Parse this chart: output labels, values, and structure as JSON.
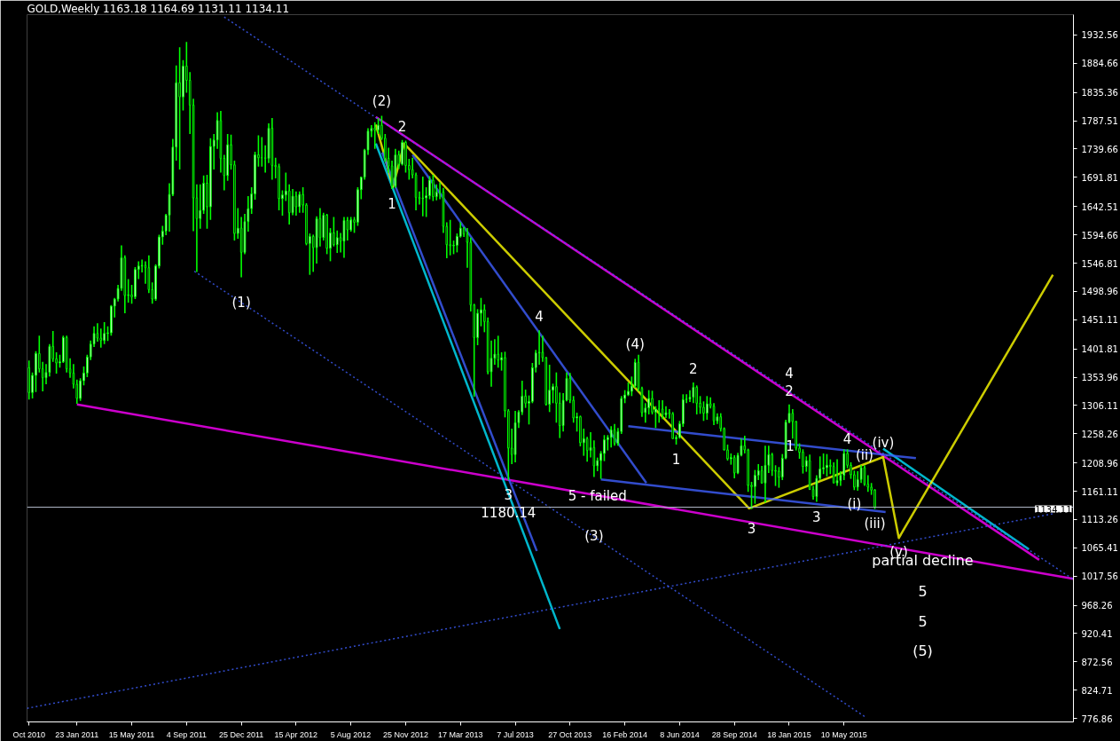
{
  "chart_data": {
    "type": "candlestick",
    "title": "GOLD,Weekly  1163.18 1164.69 1131.11 1134.11",
    "color": "#00ff00",
    "x": [
      "2010-10-17",
      "2010-10-24",
      "2010-10-31",
      "2010-11-07",
      "2010-11-14",
      "2010-11-21",
      "2010-11-28",
      "2010-12-05",
      "2010-12-12",
      "2010-12-19",
      "2010-12-26",
      "2011-01-02",
      "2011-01-09",
      "2011-01-16",
      "2011-01-23",
      "2011-01-30",
      "2011-02-06",
      "2011-02-13",
      "2011-02-20",
      "2011-02-27",
      "2011-03-06",
      "2011-03-13",
      "2011-03-20",
      "2011-03-27",
      "2011-04-03",
      "2011-04-10",
      "2011-04-17",
      "2011-04-24",
      "2011-05-01",
      "2011-05-08",
      "2011-05-15",
      "2011-05-22",
      "2011-05-29",
      "2011-06-05",
      "2011-06-12",
      "2011-06-19",
      "2011-06-26",
      "2011-07-03",
      "2011-07-10",
      "2011-07-17",
      "2011-07-24",
      "2011-07-31",
      "2011-08-07",
      "2011-08-14",
      "2011-08-21",
      "2011-08-28",
      "2011-09-04",
      "2011-09-11",
      "2011-09-18",
      "2011-09-25",
      "2011-10-02",
      "2011-10-09",
      "2011-10-16",
      "2011-10-23",
      "2011-10-30",
      "2011-11-06",
      "2011-11-13",
      "2011-11-20",
      "2011-11-27",
      "2011-12-04",
      "2011-12-11",
      "2011-12-18",
      "2011-12-25",
      "2012-01-01",
      "2012-01-08",
      "2012-01-15",
      "2012-01-22",
      "2012-01-29",
      "2012-02-05",
      "2012-02-12",
      "2012-02-19",
      "2012-02-26",
      "2012-03-04",
      "2012-03-11",
      "2012-03-18",
      "2012-03-25",
      "2012-04-01",
      "2012-04-08",
      "2012-04-15",
      "2012-04-22",
      "2012-04-29",
      "2012-05-06",
      "2012-05-13",
      "2012-05-20",
      "2012-05-27",
      "2012-06-03",
      "2012-06-10",
      "2012-06-17",
      "2012-06-24",
      "2012-07-01",
      "2012-07-08",
      "2012-07-15",
      "2012-07-22",
      "2012-07-29",
      "2012-08-05",
      "2012-08-12",
      "2012-08-19",
      "2012-08-26",
      "2012-09-02",
      "2012-09-09",
      "2012-09-16",
      "2012-09-23",
      "2012-09-30",
      "2012-10-07",
      "2012-10-14",
      "2012-10-21",
      "2012-10-28",
      "2012-11-04",
      "2012-11-11",
      "2012-11-18",
      "2012-11-25",
      "2012-12-02",
      "2012-12-09",
      "2012-12-16",
      "2012-12-23",
      "2012-12-30",
      "2013-01-06",
      "2013-01-13",
      "2013-01-20",
      "2013-01-27",
      "2013-02-03",
      "2013-02-10",
      "2013-02-17",
      "2013-02-24",
      "2013-03-03",
      "2013-03-10",
      "2013-03-17",
      "2013-03-24",
      "2013-03-31",
      "2013-04-07",
      "2013-04-14",
      "2013-04-21",
      "2013-04-28",
      "2013-05-05",
      "2013-05-12",
      "2013-05-19",
      "2013-05-26",
      "2013-06-02",
      "2013-06-09",
      "2013-06-16",
      "2013-06-23",
      "2013-06-30",
      "2013-07-07",
      "2013-07-14",
      "2013-07-21",
      "2013-07-28",
      "2013-08-04",
      "2013-08-11",
      "2013-08-18",
      "2013-08-25",
      "2013-09-01",
      "2013-09-08",
      "2013-09-15",
      "2013-09-22",
      "2013-09-29",
      "2013-10-06",
      "2013-10-13",
      "2013-10-20",
      "2013-10-27",
      "2013-11-03",
      "2013-11-10",
      "2013-11-17",
      "2013-11-24",
      "2013-12-01",
      "2013-12-08",
      "2013-12-15",
      "2013-12-22",
      "2013-12-29",
      "2014-01-05",
      "2014-01-12",
      "2014-01-19",
      "2014-01-26",
      "2014-02-02",
      "2014-02-09",
      "2014-02-16",
      "2014-02-23",
      "2014-03-02",
      "2014-03-09",
      "2014-03-16",
      "2014-03-23",
      "2014-03-30",
      "2014-04-06",
      "2014-04-13",
      "2014-04-20",
      "2014-04-27",
      "2014-05-04",
      "2014-05-11",
      "2014-05-18",
      "2014-05-25",
      "2014-06-01",
      "2014-06-08",
      "2014-06-15",
      "2014-06-22",
      "2014-06-29",
      "2014-07-06",
      "2014-07-13",
      "2014-07-20",
      "2014-07-27",
      "2014-08-03",
      "2014-08-10",
      "2014-08-17",
      "2014-08-24",
      "2014-08-31",
      "2014-09-07",
      "2014-09-14",
      "2014-09-21",
      "2014-09-28",
      "2014-10-05",
      "2014-10-12",
      "2014-10-19",
      "2014-10-26",
      "2014-11-02",
      "2014-11-09",
      "2014-11-16",
      "2014-11-23",
      "2014-11-30",
      "2014-12-07",
      "2014-12-14",
      "2014-12-21",
      "2014-12-28",
      "2015-01-04",
      "2015-01-11",
      "2015-01-18",
      "2015-01-25",
      "2015-02-01",
      "2015-02-08",
      "2015-02-15",
      "2015-02-22",
      "2015-03-01",
      "2015-03-08",
      "2015-03-15",
      "2015-03-22",
      "2015-03-29",
      "2015-04-05",
      "2015-04-12",
      "2015-04-19",
      "2015-04-26",
      "2015-05-03",
      "2015-05-10",
      "2015-05-17",
      "2015-05-24",
      "2015-05-31",
      "2015-06-07",
      "2015-06-14",
      "2015-06-21",
      "2015-06-28",
      "2015-07-05",
      "2015-07-12"
    ],
    "ohlc": [
      [
        1370,
        1382,
        1316,
        1328
      ],
      [
        1328,
        1362,
        1318,
        1357
      ],
      [
        1357,
        1398,
        1329,
        1394
      ],
      [
        1394,
        1424,
        1362,
        1368
      ],
      [
        1368,
        1380,
        1330,
        1353
      ],
      [
        1353,
        1376,
        1342,
        1362
      ],
      [
        1362,
        1410,
        1355,
        1406
      ],
      [
        1406,
        1432,
        1380,
        1385
      ],
      [
        1385,
        1396,
        1360,
        1378
      ],
      [
        1378,
        1392,
        1370,
        1380
      ],
      [
        1380,
        1424,
        1378,
        1421
      ],
      [
        1421,
        1424,
        1362,
        1368
      ],
      [
        1368,
        1386,
        1353,
        1361
      ],
      [
        1361,
        1376,
        1335,
        1342
      ],
      [
        1342,
        1350,
        1309,
        1318
      ],
      [
        1318,
        1352,
        1314,
        1348
      ],
      [
        1348,
        1372,
        1340,
        1361
      ],
      [
        1361,
        1392,
        1354,
        1388
      ],
      [
        1388,
        1416,
        1383,
        1410
      ],
      [
        1410,
        1440,
        1405,
        1428
      ],
      [
        1428,
        1445,
        1414,
        1420
      ],
      [
        1420,
        1436,
        1404,
        1416
      ],
      [
        1416,
        1447,
        1410,
        1428
      ],
      [
        1428,
        1440,
        1415,
        1429
      ],
      [
        1429,
        1476,
        1424,
        1474
      ],
      [
        1474,
        1488,
        1455,
        1486
      ],
      [
        1486,
        1510,
        1482,
        1504
      ],
      [
        1504,
        1577,
        1500,
        1556
      ],
      [
        1556,
        1560,
        1462,
        1492
      ],
      [
        1492,
        1520,
        1480,
        1493
      ],
      [
        1493,
        1510,
        1478,
        1490
      ],
      [
        1490,
        1540,
        1486,
        1536
      ],
      [
        1536,
        1550,
        1520,
        1542
      ],
      [
        1542,
        1553,
        1531,
        1543
      ],
      [
        1543,
        1550,
        1512,
        1539
      ],
      [
        1539,
        1560,
        1496,
        1502
      ],
      [
        1502,
        1514,
        1478,
        1486
      ],
      [
        1486,
        1545,
        1483,
        1542
      ],
      [
        1542,
        1595,
        1538,
        1591
      ],
      [
        1591,
        1610,
        1578,
        1601
      ],
      [
        1601,
        1630,
        1594,
        1628
      ],
      [
        1628,
        1682,
        1600,
        1663
      ],
      [
        1663,
        1757,
        1660,
        1743
      ],
      [
        1743,
        1881,
        1720,
        1852
      ],
      [
        1852,
        1912,
        1705,
        1828
      ],
      [
        1828,
        1890,
        1805,
        1880
      ],
      [
        1880,
        1921,
        1835,
        1856
      ],
      [
        1856,
        1870,
        1765,
        1814
      ],
      [
        1814,
        1825,
        1601,
        1657
      ],
      [
        1657,
        1680,
        1532,
        1622
      ],
      [
        1622,
        1680,
        1605,
        1636
      ],
      [
        1636,
        1695,
        1630,
        1682
      ],
      [
        1682,
        1696,
        1605,
        1642
      ],
      [
        1642,
        1758,
        1620,
        1744
      ],
      [
        1744,
        1765,
        1705,
        1755
      ],
      [
        1755,
        1802,
        1740,
        1788
      ],
      [
        1788,
        1804,
        1700,
        1724
      ],
      [
        1724,
        1730,
        1670,
        1695
      ],
      [
        1695,
        1765,
        1686,
        1747
      ],
      [
        1747,
        1764,
        1705,
        1713
      ],
      [
        1713,
        1720,
        1585,
        1597
      ],
      [
        1597,
        1640,
        1588,
        1606
      ],
      [
        1606,
        1625,
        1523,
        1565
      ],
      [
        1565,
        1630,
        1562,
        1617
      ],
      [
        1617,
        1660,
        1600,
        1639
      ],
      [
        1639,
        1675,
        1630,
        1664
      ],
      [
        1664,
        1735,
        1654,
        1730
      ],
      [
        1730,
        1763,
        1710,
        1725
      ],
      [
        1725,
        1760,
        1710,
        1725
      ],
      [
        1725,
        1746,
        1700,
        1724
      ],
      [
        1724,
        1783,
        1716,
        1775
      ],
      [
        1775,
        1792,
        1688,
        1712
      ],
      [
        1712,
        1725,
        1690,
        1710
      ],
      [
        1710,
        1715,
        1636,
        1656
      ],
      [
        1656,
        1670,
        1627,
        1662
      ],
      [
        1662,
        1700,
        1652,
        1669
      ],
      [
        1669,
        1680,
        1612,
        1632
      ],
      [
        1632,
        1672,
        1628,
        1660
      ],
      [
        1660,
        1668,
        1627,
        1642
      ],
      [
        1642,
        1668,
        1632,
        1663
      ],
      [
        1663,
        1675,
        1632,
        1645
      ],
      [
        1645,
        1648,
        1577,
        1580
      ],
      [
        1580,
        1597,
        1527,
        1592
      ],
      [
        1592,
        1595,
        1532,
        1573
      ],
      [
        1573,
        1626,
        1546,
        1622
      ],
      [
        1622,
        1640,
        1575,
        1590
      ],
      [
        1590,
        1632,
        1585,
        1628
      ],
      [
        1628,
        1630,
        1562,
        1572
      ],
      [
        1572,
        1606,
        1550,
        1598
      ],
      [
        1598,
        1625,
        1575,
        1578
      ],
      [
        1578,
        1602,
        1564,
        1590
      ],
      [
        1590,
        1598,
        1565,
        1584
      ],
      [
        1584,
        1625,
        1556,
        1619
      ],
      [
        1619,
        1625,
        1585,
        1603
      ],
      [
        1603,
        1625,
        1600,
        1620
      ],
      [
        1620,
        1625,
        1598,
        1616
      ],
      [
        1616,
        1675,
        1610,
        1671
      ],
      [
        1671,
        1693,
        1655,
        1692
      ],
      [
        1692,
        1740,
        1688,
        1738
      ],
      [
        1738,
        1775,
        1730,
        1770
      ],
      [
        1770,
        1780,
        1760,
        1775
      ],
      [
        1775,
        1785,
        1740,
        1772
      ],
      [
        1772,
        1792,
        1765,
        1780
      ],
      [
        1780,
        1796,
        1755,
        1758
      ],
      [
        1758,
        1765,
        1718,
        1724
      ],
      [
        1724,
        1742,
        1700,
        1711
      ],
      [
        1711,
        1720,
        1672,
        1677
      ],
      [
        1677,
        1740,
        1674,
        1730
      ],
      [
        1730,
        1737,
        1706,
        1714
      ],
      [
        1714,
        1755,
        1712,
        1751
      ],
      [
        1751,
        1754,
        1700,
        1712
      ],
      [
        1712,
        1723,
        1688,
        1705
      ],
      [
        1705,
        1725,
        1690,
        1696
      ],
      [
        1696,
        1700,
        1636,
        1658
      ],
      [
        1658,
        1668,
        1646,
        1656
      ],
      [
        1656,
        1693,
        1626,
        1657
      ],
      [
        1657,
        1675,
        1625,
        1661
      ],
      [
        1661,
        1694,
        1655,
        1687
      ],
      [
        1687,
        1696,
        1652,
        1659
      ],
      [
        1659,
        1680,
        1653,
        1667
      ],
      [
        1667,
        1683,
        1655,
        1667
      ],
      [
        1667,
        1674,
        1598,
        1609
      ],
      [
        1609,
        1616,
        1555,
        1578
      ],
      [
        1578,
        1620,
        1560,
        1576
      ],
      [
        1576,
        1585,
        1562,
        1577
      ],
      [
        1577,
        1597,
        1565,
        1592
      ],
      [
        1592,
        1616,
        1590,
        1606
      ],
      [
        1606,
        1608,
        1591,
        1596
      ],
      [
        1596,
        1606,
        1539,
        1582
      ],
      [
        1582,
        1590,
        1465,
        1476
      ],
      [
        1476,
        1478,
        1321,
        1421
      ],
      [
        1421,
        1469,
        1408,
        1462
      ],
      [
        1462,
        1488,
        1440,
        1468
      ],
      [
        1468,
        1477,
        1430,
        1448
      ],
      [
        1448,
        1455,
        1359,
        1363
      ],
      [
        1363,
        1416,
        1338,
        1386
      ],
      [
        1386,
        1418,
        1375,
        1393
      ],
      [
        1393,
        1424,
        1370,
        1383
      ],
      [
        1383,
        1396,
        1365,
        1387
      ],
      [
        1387,
        1397,
        1286,
        1297
      ],
      [
        1297,
        1300,
        1180,
        1234
      ],
      [
        1234,
        1267,
        1207,
        1223
      ],
      [
        1223,
        1297,
        1210,
        1277
      ],
      [
        1277,
        1298,
        1268,
        1295
      ],
      [
        1295,
        1348,
        1290,
        1322
      ],
      [
        1322,
        1333,
        1302,
        1310
      ],
      [
        1310,
        1323,
        1274,
        1313
      ],
      [
        1313,
        1378,
        1310,
        1370
      ],
      [
        1370,
        1400,
        1362,
        1395
      ],
      [
        1395,
        1433,
        1375,
        1396
      ],
      [
        1396,
        1424,
        1380,
        1387
      ],
      [
        1387,
        1388,
        1306,
        1308
      ],
      [
        1308,
        1375,
        1295,
        1332
      ],
      [
        1332,
        1343,
        1310,
        1338
      ],
      [
        1338,
        1362,
        1277,
        1310
      ],
      [
        1310,
        1328,
        1251,
        1272
      ],
      [
        1272,
        1327,
        1262,
        1315
      ],
      [
        1315,
        1362,
        1313,
        1352
      ],
      [
        1352,
        1361,
        1310,
        1315
      ],
      [
        1315,
        1322,
        1277,
        1285
      ],
      [
        1285,
        1294,
        1262,
        1287
      ],
      [
        1287,
        1289,
        1237,
        1243
      ],
      [
        1243,
        1267,
        1221,
        1250
      ],
      [
        1250,
        1253,
        1211,
        1230
      ],
      [
        1230,
        1261,
        1218,
        1235
      ],
      [
        1235,
        1247,
        1185,
        1204
      ],
      [
        1204,
        1218,
        1195,
        1213
      ],
      [
        1213,
        1229,
        1182,
        1225
      ],
      [
        1225,
        1256,
        1212,
        1248
      ],
      [
        1248,
        1256,
        1230,
        1252
      ],
      [
        1252,
        1271,
        1235,
        1265
      ],
      [
        1265,
        1275,
        1238,
        1242
      ],
      [
        1242,
        1268,
        1238,
        1262
      ],
      [
        1262,
        1322,
        1258,
        1318
      ],
      [
        1318,
        1332,
        1310,
        1324
      ],
      [
        1324,
        1345,
        1322,
        1330
      ],
      [
        1330,
        1355,
        1322,
        1339
      ],
      [
        1339,
        1385,
        1336,
        1379
      ],
      [
        1379,
        1392,
        1330,
        1335
      ],
      [
        1335,
        1338,
        1287,
        1294
      ],
      [
        1294,
        1310,
        1277,
        1302
      ],
      [
        1302,
        1332,
        1291,
        1318
      ],
      [
        1318,
        1331,
        1291,
        1295
      ],
      [
        1295,
        1305,
        1268,
        1300
      ],
      [
        1300,
        1315,
        1277,
        1300
      ],
      [
        1300,
        1315,
        1283,
        1290
      ],
      [
        1290,
        1305,
        1285,
        1294
      ],
      [
        1294,
        1300,
        1284,
        1292
      ],
      [
        1292,
        1295,
        1250,
        1250
      ],
      [
        1250,
        1256,
        1240,
        1252
      ],
      [
        1252,
        1280,
        1250,
        1275
      ],
      [
        1275,
        1325,
        1270,
        1316
      ],
      [
        1316,
        1325,
        1310,
        1317
      ],
      [
        1317,
        1332,
        1312,
        1320
      ],
      [
        1320,
        1345,
        1310,
        1337
      ],
      [
        1337,
        1340,
        1291,
        1310
      ],
      [
        1310,
        1322,
        1292,
        1303
      ],
      [
        1303,
        1313,
        1280,
        1293
      ],
      [
        1293,
        1322,
        1282,
        1309
      ],
      [
        1309,
        1320,
        1301,
        1305
      ],
      [
        1305,
        1310,
        1273,
        1280
      ],
      [
        1280,
        1293,
        1275,
        1287
      ],
      [
        1287,
        1293,
        1262,
        1267
      ],
      [
        1267,
        1269,
        1230,
        1231
      ],
      [
        1231,
        1240,
        1213,
        1216
      ],
      [
        1216,
        1225,
        1206,
        1218
      ],
      [
        1218,
        1222,
        1183,
        1192
      ],
      [
        1192,
        1226,
        1190,
        1222
      ],
      [
        1222,
        1250,
        1220,
        1238
      ],
      [
        1238,
        1255,
        1225,
        1231
      ],
      [
        1231,
        1233,
        1160,
        1171
      ],
      [
        1171,
        1177,
        1131,
        1169
      ],
      [
        1169,
        1197,
        1140,
        1188
      ],
      [
        1188,
        1207,
        1180,
        1196
      ],
      [
        1196,
        1204,
        1174,
        1175
      ],
      [
        1175,
        1238,
        1142,
        1205
      ],
      [
        1205,
        1238,
        1192,
        1223
      ],
      [
        1223,
        1226,
        1187,
        1196
      ],
      [
        1196,
        1205,
        1170,
        1195
      ],
      [
        1195,
        1202,
        1167,
        1185
      ],
      [
        1185,
        1224,
        1180,
        1217
      ],
      [
        1217,
        1282,
        1215,
        1278
      ],
      [
        1278,
        1308,
        1276,
        1293
      ],
      [
        1293,
        1300,
        1250,
        1279
      ],
      [
        1279,
        1280,
        1230,
        1234
      ],
      [
        1234,
        1242,
        1216,
        1227
      ],
      [
        1227,
        1232,
        1191,
        1203
      ],
      [
        1203,
        1220,
        1194,
        1213
      ],
      [
        1213,
        1223,
        1164,
        1164
      ],
      [
        1164,
        1170,
        1147,
        1152
      ],
      [
        1152,
        1188,
        1143,
        1183
      ],
      [
        1183,
        1220,
        1180,
        1199
      ],
      [
        1199,
        1225,
        1190,
        1201
      ],
      [
        1201,
        1224,
        1186,
        1205
      ],
      [
        1205,
        1215,
        1190,
        1203
      ],
      [
        1203,
        1210,
        1175,
        1175
      ],
      [
        1175,
        1215,
        1170,
        1179
      ],
      [
        1179,
        1195,
        1170,
        1188
      ],
      [
        1188,
        1232,
        1180,
        1225
      ],
      [
        1225,
        1232,
        1200,
        1205
      ],
      [
        1205,
        1210,
        1182,
        1189
      ],
      [
        1189,
        1196,
        1163,
        1168
      ],
      [
        1168,
        1195,
        1162,
        1181
      ],
      [
        1181,
        1205,
        1175,
        1201
      ],
      [
        1201,
        1205,
        1170,
        1173
      ],
      [
        1173,
        1188,
        1160,
        1168
      ],
      [
        1168,
        1175,
        1155,
        1163
      ],
      [
        1163.18,
        1164.69,
        1131.11,
        1134.11
      ]
    ],
    "series": [
      {
        "type": "line",
        "color": "#ff00ff",
        "line_style": "solid",
        "x": [
          "2011-01-23",
          "2016-08-21"
        ],
        "values": [
          1308,
          1013
        ]
      },
      {
        "type": "line",
        "color": "#ff00ff",
        "line_style": "solid",
        "x": [
          "2012-09-25",
          "2016-06-12"
        ],
        "values": [
          1794,
          1045
        ]
      },
      {
        "type": "line",
        "color": "#00e5ff",
        "line_style": "solid",
        "x": [
          "2015-07-29",
          "2016-05-22"
        ],
        "values": [
          1233,
          1063
        ]
      },
      {
        "type": "line",
        "color": "#00e5ff",
        "line_style": "solid",
        "x": [
          "2012-09-25",
          "2013-10-06"
        ],
        "values": [
          1749,
          928
        ]
      },
      {
        "type": "line",
        "color": "#ffff00",
        "line_style": "solid",
        "x": [
          "2012-09-25",
          "2012-10-30",
          "2012-11-22",
          "2014-10-28",
          "2015-07-29",
          "2015-08-30",
          "2016-07-10"
        ],
        "values": [
          1781,
          1676,
          1749,
          1132,
          1219,
          1082,
          1527
        ]
      },
      {
        "type": "line",
        "color": "#3f5fff",
        "line_style": "dotted",
        "x": [
          "2011-11-20",
          "2016-08-21"
        ],
        "values": [
          1963,
          1012
        ]
      },
      {
        "type": "line",
        "color": "#3f5fff",
        "line_style": "dotted",
        "x": [
          "2011-09-20",
          "2015-06-25"
        ],
        "values": [
          1533,
          778
        ]
      },
      {
        "type": "line",
        "color": "#3f5fff",
        "line_style": "dotted",
        "x": [
          "2010-10-13",
          "2016-07-10"
        ],
        "values": [
          794,
          1123
        ]
      },
      {
        "type": "line",
        "color": "#3f5fff",
        "line_style": "solid",
        "x": [
          "2012-12-09",
          "2014-04-01"
        ],
        "values": [
          1730,
          1175
        ]
      },
      {
        "type": "line",
        "color": "#3f5fff",
        "line_style": "solid",
        "x": [
          "2013-12-29",
          "2015-08-03"
        ],
        "values": [
          1181,
          1126
        ]
      },
      {
        "type": "line",
        "color": "#3f5fff",
        "line_style": "solid",
        "x": [
          "2014-02-23",
          "2015-10-04"
        ],
        "values": [
          1271,
          1217
        ]
      },
      {
        "type": "line",
        "color": "#3f5fff",
        "line_style": "solid",
        "x": [
          "2012-10-08",
          "2013-08-20"
        ],
        "values": [
          1734,
          1060
        ]
      }
    ],
    "ref_lines": [
      {
        "axis": "y",
        "value": 1134.11,
        "label": "1134.11",
        "color": "#b0b8c8"
      }
    ],
    "annotations": [
      {
        "text": "(2)",
        "x": "2012-10-07",
        "y": 1796
      },
      {
        "text": "2",
        "x": "2012-11-18",
        "y": 1755
      },
      {
        "text": "1",
        "x": "2012-10-28",
        "y": 1672
      },
      {
        "text": "(1)",
        "x": "2011-12-25",
        "y": 1480
      },
      {
        "text": "4",
        "x": "2013-08-25",
        "y": 1433
      },
      {
        "text": "(4)",
        "x": "2014-03-09",
        "y": 1385
      },
      {
        "text": "2",
        "x": "2014-07-06",
        "y": 1345
      },
      {
        "text": "1",
        "x": "2014-06-01",
        "y": 1240
      },
      {
        "text": "2",
        "x": "2015-01-18",
        "y": 1308
      },
      {
        "text": "4",
        "x": "2015-01-18",
        "y": 1308
      },
      {
        "text": "1",
        "x": "2015-01-20",
        "y": 1239
      },
      {
        "text": "4",
        "x": "2015-05-17",
        "y": 1251
      },
      {
        "text": "(iv)",
        "x": "2015-07-29",
        "y": 1219
      },
      {
        "text": "(ii)",
        "x": "2015-06-21",
        "y": 1222
      },
      {
        "text": "(i)",
        "x": "2015-05-31",
        "y": 1140
      },
      {
        "text": "(iii)",
        "x": "2015-07-12",
        "y": 1131.11
      },
      {
        "text": "3",
        "x": "2015-03-15",
        "y": 1143
      },
      {
        "text": "3",
        "x": "2014-11-02",
        "y": 1099
      },
      {
        "text": "(v)",
        "x": "2015-08-30",
        "y": 1082
      },
      "partial decline",
      "5",
      "5",
      "(5)",
      {
        "text": "3",
        "x": "2013-06-23",
        "y": 1180
      },
      {
        "text": "1180.14",
        "x": "2013-06-23",
        "y": 1180
      },
      {
        "text": "5 - failed",
        "x": "2013-12-22",
        "y": 1153
      },
      {
        "text": "(3)",
        "x": "2013-12-15",
        "y": 1086
      }
    ],
    "xlim": [
      "2010-10-13",
      "2016-08-21"
    ],
    "xticks": [
      {
        "value": "2010-10-17",
        "label": "Oct 2010"
      },
      {
        "value": "2011-01-23",
        "label": "23 Jan 2011"
      },
      {
        "value": "2011-05-15",
        "label": "15 May 2011"
      },
      {
        "value": "2011-09-04",
        "label": "4 Sep 2011"
      },
      {
        "value": "2011-12-25",
        "label": "25 Dec 2011"
      },
      {
        "value": "2012-04-15",
        "label": "15 Apr 2012"
      },
      {
        "value": "2012-08-05",
        "label": "5 Aug 2012"
      },
      {
        "value": "2012-11-25",
        "label": "25 Nov 2012"
      },
      {
        "value": "2013-03-17",
        "label": "17 Mar 2013"
      },
      {
        "value": "2013-07-07",
        "label": "7 Jul 2013"
      },
      {
        "value": "2013-10-27",
        "label": "27 Oct 2013"
      },
      {
        "value": "2014-02-16",
        "label": "16 Feb 2014"
      },
      {
        "value": "2014-06-08",
        "label": "8 Jun 2014"
      },
      {
        "value": "2014-09-28",
        "label": "28 Sep 2014"
      },
      {
        "value": "2015-01-18",
        "label": "18 Jan 2015"
      },
      {
        "value": "2015-05-10",
        "label": "10 May 2015"
      }
    ],
    "ylim": [
      771,
      1967
    ],
    "yticks": [
      776.86,
      824.71,
      872.56,
      920.41,
      968.26,
      1017.56,
      1065.41,
      1113.26,
      1161.11,
      1208.96,
      1258.26,
      1306.11,
      1353.96,
      1401.81,
      1451.11,
      1498.96,
      1546.81,
      1594.66,
      1642.51,
      1691.81,
      1739.66,
      1787.51,
      1835.36,
      1884.66,
      1932.56
    ]
  }
}
